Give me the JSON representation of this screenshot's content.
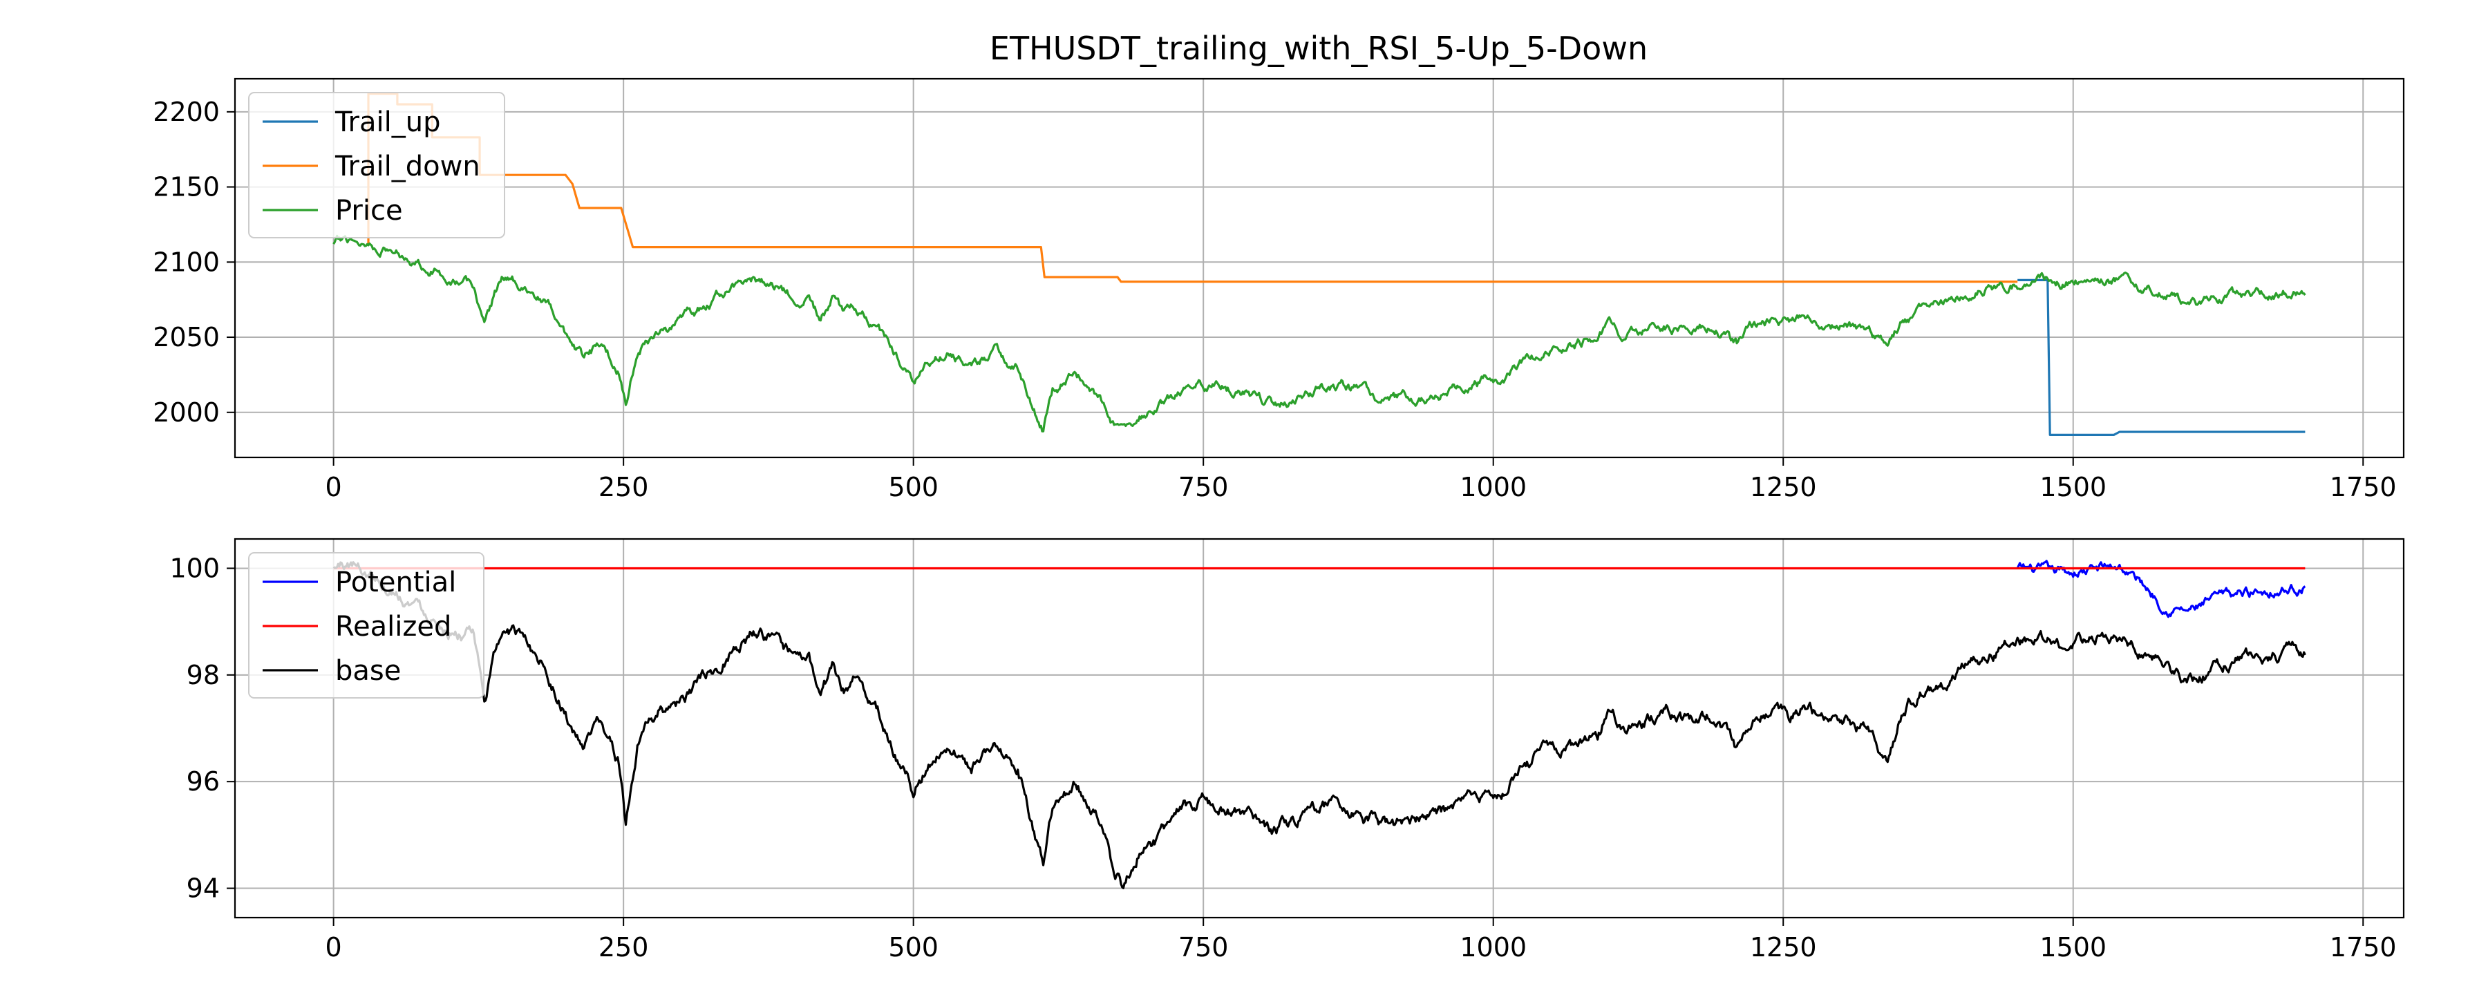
{
  "chart_data": [
    {
      "type": "line",
      "title": "ETHUSDT_trailing_with_RSI_5-Up_5-Down",
      "xlabel": "",
      "ylabel": "",
      "xlim": [
        -85,
        1785
      ],
      "ylim": [
        1970,
        2222
      ],
      "xticks": [
        0,
        250,
        500,
        750,
        1000,
        1250,
        1500,
        1750
      ],
      "yticks": [
        2000,
        2050,
        2100,
        2150,
        2200
      ],
      "grid": true,
      "legend_position": "upper left",
      "series": [
        {
          "name": "Trail_up",
          "color": "#1f77b4",
          "kind": "step",
          "points": [
            [
              1452,
              2088
            ],
            [
              1478,
              2088
            ],
            [
              1480,
              1985
            ],
            [
              1535,
              1985
            ],
            [
              1540,
              1987
            ],
            [
              1700,
              1987
            ]
          ]
        },
        {
          "name": "Trail_down",
          "color": "#ff7f0e",
          "kind": "step",
          "points": [
            [
              30,
              2112
            ],
            [
              30,
              2212
            ],
            [
              55,
              2212
            ],
            [
              55,
              2205
            ],
            [
              85,
              2205
            ],
            [
              85,
              2183
            ],
            [
              126,
              2183
            ],
            [
              126,
              2158
            ],
            [
              200,
              2158
            ],
            [
              206,
              2152
            ],
            [
              212,
              2136
            ],
            [
              248,
              2136
            ],
            [
              255,
              2118
            ],
            [
              258,
              2110
            ],
            [
              610,
              2110
            ],
            [
              613,
              2090
            ],
            [
              676,
              2090
            ],
            [
              679,
              2087
            ],
            [
              1452,
              2087
            ]
          ]
        },
        {
          "name": "Price",
          "color": "#2ca02c",
          "kind": "noisy",
          "noise": 4,
          "points": [
            [
              0,
              2112
            ],
            [
              15,
              2116
            ],
            [
              40,
              2110
            ],
            [
              60,
              2105
            ],
            [
              80,
              2098
            ],
            [
              100,
              2090
            ],
            [
              120,
              2085
            ],
            [
              130,
              2060
            ],
            [
              145,
              2090
            ],
            [
              165,
              2085
            ],
            [
              185,
              2070
            ],
            [
              205,
              2040
            ],
            [
              215,
              2035
            ],
            [
              230,
              2045
            ],
            [
              245,
              2030
            ],
            [
              252,
              2008
            ],
            [
              262,
              2040
            ],
            [
              280,
              2055
            ],
            [
              300,
              2060
            ],
            [
              320,
              2070
            ],
            [
              340,
              2082
            ],
            [
              360,
              2088
            ],
            [
              375,
              2087
            ],
            [
              395,
              2078
            ],
            [
              410,
              2078
            ],
            [
              420,
              2060
            ],
            [
              430,
              2075
            ],
            [
              440,
              2065
            ],
            [
              450,
              2070
            ],
            [
              470,
              2055
            ],
            [
              490,
              2035
            ],
            [
              500,
              2020
            ],
            [
              510,
              2030
            ],
            [
              530,
              2040
            ],
            [
              550,
              2030
            ],
            [
              570,
              2040
            ],
            [
              590,
              2030
            ],
            [
              605,
              2000
            ],
            [
              612,
              1988
            ],
            [
              620,
              2015
            ],
            [
              640,
              2025
            ],
            [
              660,
              2010
            ],
            [
              670,
              1995
            ],
            [
              680,
              1985
            ],
            [
              695,
              1998
            ],
            [
              710,
              2000
            ],
            [
              730,
              2015
            ],
            [
              750,
              2018
            ],
            [
              770,
              2015
            ],
            [
              790,
              2010
            ],
            [
              810,
              2005
            ],
            [
              830,
              2010
            ],
            [
              850,
              2015
            ],
            [
              870,
              2018
            ],
            [
              890,
              2012
            ],
            [
              910,
              2008
            ],
            [
              930,
              2010
            ],
            [
              950,
              2012
            ],
            [
              970,
              2015
            ],
            [
              990,
              2020
            ],
            [
              1010,
              2025
            ],
            [
              1030,
              2035
            ],
            [
              1050,
              2042
            ],
            [
              1070,
              2045
            ],
            [
              1090,
              2050
            ],
            [
              1100,
              2058
            ],
            [
              1115,
              2052
            ],
            [
              1130,
              2055
            ],
            [
              1150,
              2058
            ],
            [
              1170,
              2055
            ],
            [
              1185,
              2057
            ],
            [
              1200,
              2052
            ],
            [
              1210,
              2045
            ],
            [
              1225,
              2058
            ],
            [
              1240,
              2060
            ],
            [
              1255,
              2058
            ],
            [
              1270,
              2062
            ],
            [
              1290,
              2055
            ],
            [
              1305,
              2058
            ],
            [
              1320,
              2055
            ],
            [
              1340,
              2045
            ],
            [
              1350,
              2058
            ],
            [
              1370,
              2068
            ],
            [
              1390,
              2072
            ],
            [
              1410,
              2078
            ],
            [
              1430,
              2082
            ],
            [
              1450,
              2085
            ],
            [
              1470,
              2088
            ],
            [
              1490,
              2085
            ],
            [
              1510,
              2088
            ],
            [
              1540,
              2088
            ],
            [
              1560,
              2082
            ],
            [
              1580,
              2080
            ],
            [
              1600,
              2070
            ],
            [
              1620,
              2075
            ],
            [
              1650,
              2078
            ],
            [
              1680,
              2080
            ],
            [
              1700,
              2080
            ]
          ]
        }
      ]
    },
    {
      "type": "line",
      "title": "",
      "xlabel": "",
      "ylabel": "",
      "xlim": [
        -85,
        1785
      ],
      "ylim": [
        93.45,
        100.55
      ],
      "xticks": [
        0,
        250,
        500,
        750,
        1000,
        1250,
        1500,
        1750
      ],
      "yticks": [
        94,
        96,
        98,
        100
      ],
      "grid": true,
      "legend_position": "upper left",
      "series": [
        {
          "name": "Potential",
          "color": "#0000ff",
          "kind": "noisy",
          "noise": 0.12,
          "points": [
            [
              1452,
              100.0
            ],
            [
              1480,
              99.9
            ],
            [
              1510,
              99.95
            ],
            [
              1540,
              100.05
            ],
            [
              1560,
              99.7
            ],
            [
              1580,
              99.3
            ],
            [
              1600,
              99.2
            ],
            [
              1630,
              99.45
            ],
            [
              1660,
              99.6
            ],
            [
              1700,
              99.65
            ]
          ]
        },
        {
          "name": "Realized",
          "color": "#ff0000",
          "kind": "step",
          "points": [
            [
              0,
              100.0
            ],
            [
              1700,
              100.0
            ]
          ]
        },
        {
          "name": "base",
          "color": "#000000",
          "kind": "noisy",
          "noise": 0.15,
          "points": [
            [
              0,
              100.0
            ],
            [
              15,
              100.1
            ],
            [
              40,
              99.8
            ],
            [
              60,
              99.5
            ],
            [
              80,
              99.2
            ],
            [
              100,
              98.9
            ],
            [
              120,
              98.7
            ],
            [
              130,
              97.5
            ],
            [
              145,
              98.9
            ],
            [
              165,
              98.7
            ],
            [
              185,
              98.1
            ],
            [
              205,
              97.0
            ],
            [
              215,
              96.6
            ],
            [
              230,
              97.1
            ],
            [
              245,
              96.4
            ],
            [
              252,
              95.2
            ],
            [
              262,
              96.6
            ],
            [
              280,
              97.3
            ],
            [
              300,
              97.5
            ],
            [
              320,
              97.9
            ],
            [
              340,
              98.4
            ],
            [
              360,
              98.8
            ],
            [
              375,
              98.7
            ],
            [
              395,
              98.3
            ],
            [
              410,
              98.3
            ],
            [
              420,
              97.5
            ],
            [
              430,
              98.1
            ],
            [
              440,
              97.7
            ],
            [
              450,
              97.9
            ],
            [
              470,
              97.3
            ],
            [
              490,
              96.3
            ],
            [
              500,
              95.8
            ],
            [
              510,
              96.2
            ],
            [
              530,
              96.7
            ],
            [
              550,
              96.3
            ],
            [
              570,
              96.7
            ],
            [
              590,
              96.3
            ],
            [
              605,
              94.9
            ],
            [
              612,
              94.5
            ],
            [
              620,
              95.6
            ],
            [
              640,
              96.0
            ],
            [
              660,
              95.4
            ],
            [
              670,
              94.6
            ],
            [
              680,
              94.1
            ],
            [
              695,
              94.8
            ],
            [
              710,
              94.9
            ],
            [
              730,
              95.5
            ],
            [
              750,
              95.6
            ],
            [
              770,
              95.5
            ],
            [
              790,
              95.3
            ],
            [
              810,
              95.0
            ],
            [
              830,
              95.3
            ],
            [
              850,
              95.5
            ],
            [
              870,
              95.6
            ],
            [
              890,
              95.3
            ],
            [
              910,
              95.1
            ],
            [
              930,
              95.2
            ],
            [
              950,
              95.3
            ],
            [
              970,
              95.5
            ],
            [
              990,
              95.7
            ],
            [
              1010,
              95.9
            ],
            [
              1030,
              96.3
            ],
            [
              1050,
              96.6
            ],
            [
              1070,
              96.7
            ],
            [
              1090,
              96.9
            ],
            [
              1100,
              97.3
            ],
            [
              1115,
              97.0
            ],
            [
              1130,
              97.1
            ],
            [
              1150,
              97.3
            ],
            [
              1170,
              97.1
            ],
            [
              1185,
              97.2
            ],
            [
              1200,
              97.0
            ],
            [
              1210,
              96.6
            ],
            [
              1225,
              97.2
            ],
            [
              1240,
              97.3
            ],
            [
              1255,
              97.2
            ],
            [
              1270,
              97.4
            ],
            [
              1290,
              97.0
            ],
            [
              1305,
              97.2
            ],
            [
              1320,
              97.0
            ],
            [
              1340,
              96.5
            ],
            [
              1350,
              97.2
            ],
            [
              1370,
              97.7
            ],
            [
              1390,
              97.9
            ],
            [
              1410,
              98.2
            ],
            [
              1430,
              98.4
            ],
            [
              1450,
              98.6
            ],
            [
              1470,
              98.7
            ],
            [
              1490,
              98.6
            ],
            [
              1510,
              98.7
            ],
            [
              1540,
              98.7
            ],
            [
              1560,
              98.4
            ],
            [
              1580,
              98.2
            ],
            [
              1600,
              97.9
            ],
            [
              1620,
              98.1
            ],
            [
              1650,
              98.3
            ],
            [
              1680,
              98.4
            ],
            [
              1700,
              98.45
            ]
          ]
        }
      ]
    }
  ]
}
